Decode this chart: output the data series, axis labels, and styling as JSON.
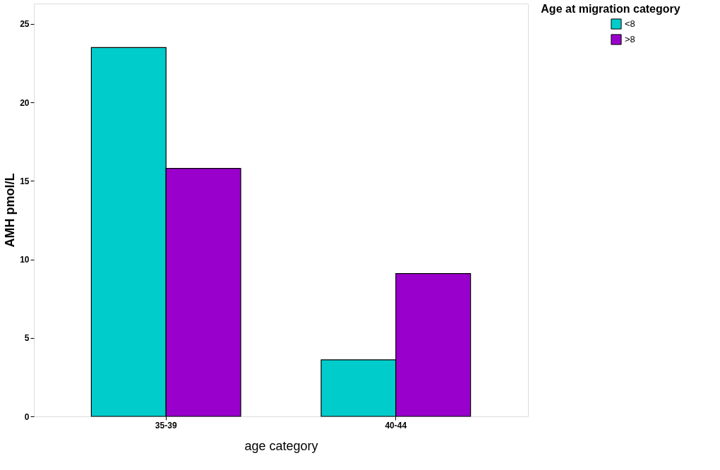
{
  "chart_data": {
    "type": "bar",
    "xlabel": "age category",
    "ylabel": "AMH pmol/L",
    "legend_title": "Age at migration category",
    "categories": [
      "35-39",
      "40-44"
    ],
    "series": [
      {
        "name": "<8",
        "color": "#00cccc",
        "values": [
          23.5,
          3.6
        ]
      },
      {
        "name": ">8",
        "color": "#9900cc",
        "values": [
          15.8,
          9.1
        ]
      }
    ],
    "ylim": [
      0,
      26.3
    ],
    "yticks": [
      0,
      5,
      10,
      15,
      20,
      25
    ],
    "grid": false,
    "legend": "top right"
  }
}
